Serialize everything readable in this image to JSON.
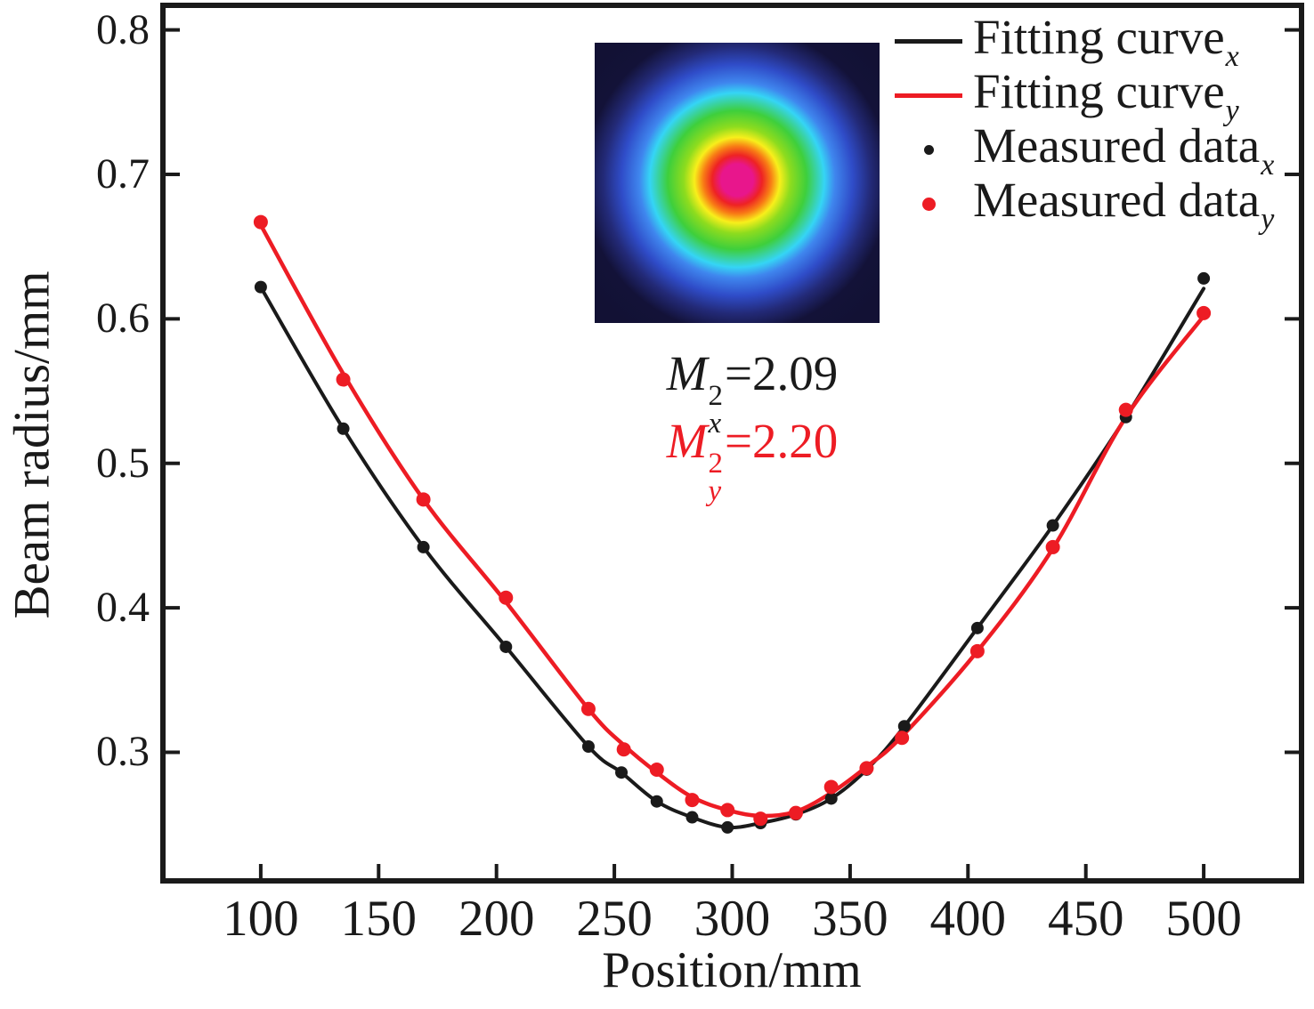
{
  "chart_data": {
    "type": "scatter",
    "title": "",
    "xlabel": "Position/mm",
    "ylabel": "Beam radius/mm",
    "xlim": [
      58.5,
      541.5
    ],
    "ylim": [
      0.211,
      0.817
    ],
    "xticks": [
      100,
      150,
      200,
      250,
      300,
      350,
      400,
      450,
      500
    ],
    "yticks": [
      0.3,
      0.4,
      0.5,
      0.6,
      0.7,
      0.8
    ],
    "grid": false,
    "legend_position": "top-right-inside",
    "axis_color": "#1a1a1a",
    "series": [
      {
        "name": "Fitting curve x",
        "sub": "x",
        "type": "line",
        "color": "#1a1a1a",
        "line_width": 4,
        "x": [
          100,
          135,
          169,
          204,
          239,
          253,
          268,
          283,
          298,
          312,
          327,
          342,
          357,
          373,
          404,
          436,
          467,
          500
        ],
        "y": [
          0.622,
          0.524,
          0.442,
          0.373,
          0.304,
          0.286,
          0.266,
          0.255,
          0.248,
          0.251,
          0.257,
          0.268,
          0.288,
          0.318,
          0.386,
          0.457,
          0.532,
          0.621
        ]
      },
      {
        "name": "Fitting curve y",
        "sub": "y",
        "type": "line",
        "color": "#ed1c24",
        "line_width": 4.5,
        "x": [
          100,
          135,
          169,
          204,
          239,
          254,
          268,
          283,
          298,
          312,
          327,
          342,
          357,
          372,
          404,
          436,
          467,
          500
        ],
        "y": [
          0.665,
          0.562,
          0.475,
          0.404,
          0.33,
          0.305,
          0.286,
          0.269,
          0.26,
          0.256,
          0.259,
          0.272,
          0.29,
          0.311,
          0.37,
          0.441,
          0.532,
          0.602
        ]
      },
      {
        "name": "Measured data x",
        "sub": "x",
        "type": "scatter",
        "color": "#1a1a1a",
        "marker_px": 7,
        "x": [
          100,
          135,
          169,
          204,
          239,
          253,
          268,
          283,
          298,
          312,
          327,
          342,
          357,
          373,
          404,
          436,
          467,
          500
        ],
        "y": [
          0.622,
          0.524,
          0.442,
          0.373,
          0.304,
          0.286,
          0.266,
          0.255,
          0.248,
          0.251,
          0.257,
          0.268,
          0.288,
          0.318,
          0.386,
          0.457,
          0.532,
          0.628
        ]
      },
      {
        "name": "Measured data y",
        "sub": "y",
        "type": "scatter",
        "color": "#ed1c24",
        "marker_px": 8,
        "x": [
          100,
          135,
          169,
          204,
          239,
          254,
          268,
          283,
          298,
          312,
          327,
          342,
          357,
          372,
          404,
          436,
          467,
          500
        ],
        "y": [
          0.667,
          0.558,
          0.475,
          0.407,
          0.33,
          0.302,
          0.288,
          0.267,
          0.26,
          0.254,
          0.258,
          0.276,
          0.289,
          0.31,
          0.37,
          0.442,
          0.537,
          0.604
        ]
      }
    ]
  },
  "legend": {
    "items": [
      {
        "label": "Fitting curve",
        "sub": "x",
        "marker": "line",
        "color": "#1a1a1a"
      },
      {
        "label": "Fitting curve",
        "sub": "y",
        "marker": "line",
        "color": "#ed1c24"
      },
      {
        "label": "Measured data",
        "sub": "x",
        "marker": "dot",
        "color": "#1a1a1a"
      },
      {
        "label": "Measured data",
        "sub": "y",
        "marker": "dot",
        "color": "#ed1c24"
      }
    ]
  },
  "annotations": [
    {
      "symbol": "M",
      "sup": "2",
      "sub": "x",
      "value": "=2.09",
      "color": "#1a1a1a"
    },
    {
      "symbol": "M",
      "sup": "2",
      "sub": "y",
      "value": "=2.20",
      "color": "#ed1c24"
    }
  ],
  "inset": {
    "content": "false-color laser beam profile image",
    "background": "#121134",
    "palette": [
      "#e8168c",
      "#ee2224",
      "#f87b15",
      "#f8ef1b",
      "#8edc1e",
      "#3ecf3c",
      "#35d5f5",
      "#3f86ee",
      "#2f4cc8",
      "#232a78",
      "#131238"
    ]
  }
}
